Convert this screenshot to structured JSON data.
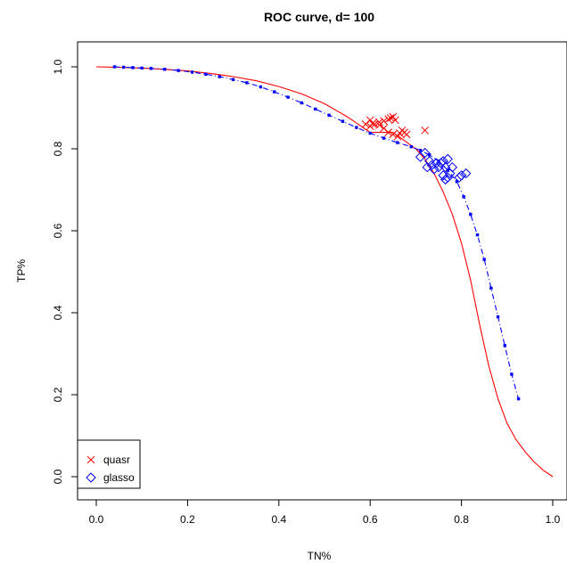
{
  "chart_data": {
    "type": "scatter",
    "title": "ROC curve, d= 100",
    "xlabel": "TN%",
    "ylabel": "TP%",
    "xlim": [
      0.0,
      1.0
    ],
    "ylim": [
      0.0,
      1.0
    ],
    "xticks": [
      "0.0",
      "0.2",
      "0.4",
      "0.6",
      "0.8",
      "1.0"
    ],
    "yticks": [
      "0.0",
      "0.2",
      "0.4",
      "0.6",
      "0.8",
      "1.0"
    ],
    "grid": false,
    "legend_position": "bottom-left",
    "colors": {
      "red": "#ff0000",
      "blue": "#0000ff"
    },
    "red_curve": {
      "x": [
        0.0,
        0.05,
        0.1,
        0.15,
        0.2,
        0.25,
        0.3,
        0.35,
        0.4,
        0.45,
        0.5,
        0.55,
        0.6,
        0.65,
        0.7,
        0.72,
        0.74,
        0.76,
        0.78,
        0.8,
        0.82,
        0.84,
        0.86,
        0.88,
        0.9,
        0.92,
        0.94,
        0.96,
        0.98,
        1.0
      ],
      "y": [
        1.0,
        0.999,
        0.997,
        0.994,
        0.99,
        0.984,
        0.976,
        0.966,
        0.952,
        0.934,
        0.91,
        0.878,
        0.84,
        0.84,
        0.8,
        0.775,
        0.74,
        0.695,
        0.64,
        0.57,
        0.48,
        0.37,
        0.27,
        0.19,
        0.13,
        0.09,
        0.06,
        0.035,
        0.015,
        0.0
      ]
    },
    "blue_curve": {
      "x": [
        0.04,
        0.06,
        0.08,
        0.1,
        0.12,
        0.15,
        0.18,
        0.21,
        0.24,
        0.27,
        0.3,
        0.33,
        0.36,
        0.39,
        0.42,
        0.45,
        0.48,
        0.51,
        0.54,
        0.57,
        0.6,
        0.63,
        0.66,
        0.69,
        0.71,
        0.73,
        0.75,
        0.77,
        0.79,
        0.805,
        0.82,
        0.835,
        0.85,
        0.865,
        0.88,
        0.895,
        0.91,
        0.925
      ],
      "y": [
        1.0,
        0.999,
        0.998,
        0.997,
        0.996,
        0.994,
        0.991,
        0.987,
        0.982,
        0.976,
        0.969,
        0.961,
        0.951,
        0.939,
        0.926,
        0.912,
        0.897,
        0.882,
        0.867,
        0.852,
        0.838,
        0.826,
        0.815,
        0.805,
        0.796,
        0.785,
        0.77,
        0.748,
        0.72,
        0.683,
        0.64,
        0.59,
        0.53,
        0.46,
        0.39,
        0.32,
        0.25,
        0.19
      ]
    },
    "series": [
      {
        "name": "quasr",
        "marker": "x",
        "color": "#ff0000",
        "points": [
          [
            0.59,
            0.86
          ],
          [
            0.6,
            0.87
          ],
          [
            0.6,
            0.855
          ],
          [
            0.61,
            0.86
          ],
          [
            0.62,
            0.865
          ],
          [
            0.63,
            0.868
          ],
          [
            0.64,
            0.872
          ],
          [
            0.645,
            0.875
          ],
          [
            0.65,
            0.878
          ],
          [
            0.655,
            0.87
          ],
          [
            0.64,
            0.84
          ],
          [
            0.65,
            0.835
          ],
          [
            0.66,
            0.83
          ],
          [
            0.665,
            0.838
          ],
          [
            0.67,
            0.845
          ],
          [
            0.675,
            0.84
          ],
          [
            0.68,
            0.835
          ],
          [
            0.63,
            0.85
          ],
          [
            0.62,
            0.858
          ],
          [
            0.605,
            0.862
          ],
          [
            0.72,
            0.845
          ]
        ]
      },
      {
        "name": "glasso",
        "marker": "diamond",
        "color": "#0000ff",
        "points": [
          [
            0.71,
            0.78
          ],
          [
            0.72,
            0.79
          ],
          [
            0.725,
            0.755
          ],
          [
            0.73,
            0.77
          ],
          [
            0.735,
            0.76
          ],
          [
            0.74,
            0.75
          ],
          [
            0.745,
            0.765
          ],
          [
            0.75,
            0.755
          ],
          [
            0.755,
            0.765
          ],
          [
            0.76,
            0.77
          ],
          [
            0.765,
            0.755
          ],
          [
            0.77,
            0.775
          ],
          [
            0.76,
            0.735
          ],
          [
            0.765,
            0.725
          ],
          [
            0.77,
            0.73
          ],
          [
            0.775,
            0.74
          ],
          [
            0.78,
            0.755
          ],
          [
            0.795,
            0.73
          ],
          [
            0.8,
            0.735
          ],
          [
            0.81,
            0.74
          ]
        ]
      }
    ]
  }
}
